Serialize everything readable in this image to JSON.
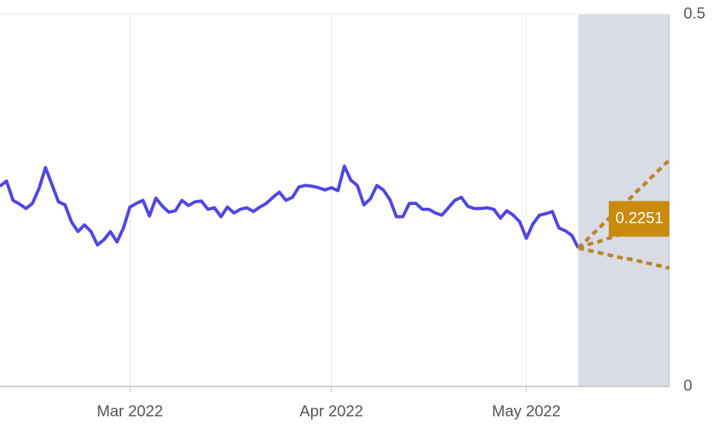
{
  "chart_data": {
    "type": "line",
    "categories": [
      null,
      null,
      null,
      null,
      null,
      null,
      null,
      null,
      null,
      null,
      null,
      null,
      null,
      null,
      null,
      null,
      null,
      null,
      null,
      null,
      "Mar 2022",
      null,
      null,
      null,
      null,
      null,
      null,
      null,
      null,
      null,
      null,
      null,
      null,
      null,
      null,
      null,
      null,
      null,
      null,
      null,
      null,
      null,
      null,
      null,
      null,
      null,
      null,
      null,
      null,
      null,
      null,
      "Apr 2022",
      null,
      null,
      null,
      null,
      null,
      null,
      null,
      null,
      null,
      null,
      null,
      null,
      null,
      null,
      null,
      null,
      null,
      null,
      null,
      null,
      null,
      null,
      null,
      null,
      null,
      null,
      null,
      null,
      null,
      "May 2022",
      null,
      null,
      null,
      null,
      null,
      null,
      null,
      null,
      null,
      null,
      null,
      null,
      null,
      null,
      null,
      null,
      null,
      null,
      null,
      null,
      null,
      null
    ],
    "series": [
      {
        "color": "#5046e4",
        "style": "solid",
        "values": [
          0.269,
          0.276,
          0.25,
          0.245,
          0.239,
          0.246,
          0.266,
          0.294,
          0.271,
          0.248,
          0.244,
          0.221,
          0.208,
          0.217,
          0.208,
          0.19,
          0.197,
          0.208,
          0.194,
          0.213,
          0.241,
          0.246,
          0.25,
          0.229,
          0.253,
          0.242,
          0.234,
          0.236,
          0.25,
          0.243,
          0.248,
          0.249,
          0.238,
          0.24,
          0.228,
          0.241,
          0.233,
          0.238,
          0.24,
          0.235,
          0.241,
          0.246,
          0.254,
          0.261,
          0.25,
          0.254,
          0.268,
          0.27,
          0.269,
          0.267,
          0.264,
          0.267,
          0.263,
          0.296,
          0.277,
          0.27,
          0.244,
          0.252,
          0.27,
          0.264,
          0.251,
          0.228,
          0.228,
          0.246,
          0.246,
          0.238,
          0.238,
          0.233,
          0.23,
          0.24,
          0.25,
          0.254,
          0.242,
          0.239,
          0.239,
          0.24,
          0.238,
          0.226,
          0.236,
          0.23,
          0.221,
          0.199,
          0.218,
          0.23,
          0.232,
          0.235,
          0.213,
          0.209,
          0.203,
          0.186,
          null,
          null,
          null,
          null,
          null,
          null,
          null,
          null,
          null,
          null,
          null,
          null,
          null,
          null
        ]
      },
      {
        "color": "#b8862b",
        "style": "dotted",
        "values": [
          null,
          null,
          null,
          null,
          null,
          null,
          null,
          null,
          null,
          null,
          null,
          null,
          null,
          null,
          null,
          null,
          null,
          null,
          null,
          null,
          null,
          null,
          null,
          null,
          null,
          null,
          null,
          null,
          null,
          null,
          null,
          null,
          null,
          null,
          null,
          null,
          null,
          null,
          null,
          null,
          null,
          null,
          null,
          null,
          null,
          null,
          null,
          null,
          null,
          null,
          null,
          null,
          null,
          null,
          null,
          null,
          null,
          null,
          null,
          null,
          null,
          null,
          null,
          null,
          null,
          null,
          null,
          null,
          null,
          null,
          null,
          null,
          null,
          null,
          null,
          null,
          null,
          null,
          null,
          null,
          null,
          null,
          null,
          null,
          null,
          null,
          null,
          null,
          null,
          0.186,
          0.194,
          0.203,
          0.211,
          0.22,
          0.228,
          0.237,
          0.245,
          0.253,
          0.262,
          0.27,
          0.279,
          0.287,
          0.296,
          0.304
        ]
      },
      {
        "color": "#b8862b",
        "style": "dotted",
        "values": [
          null,
          null,
          null,
          null,
          null,
          null,
          null,
          null,
          null,
          null,
          null,
          null,
          null,
          null,
          null,
          null,
          null,
          null,
          null,
          null,
          null,
          null,
          null,
          null,
          null,
          null,
          null,
          null,
          null,
          null,
          null,
          null,
          null,
          null,
          null,
          null,
          null,
          null,
          null,
          null,
          null,
          null,
          null,
          null,
          null,
          null,
          null,
          null,
          null,
          null,
          null,
          null,
          null,
          null,
          null,
          null,
          null,
          null,
          null,
          null,
          null,
          null,
          null,
          null,
          null,
          null,
          null,
          null,
          null,
          null,
          null,
          null,
          null,
          null,
          null,
          null,
          null,
          null,
          null,
          null,
          null,
          null,
          null,
          null,
          null,
          null,
          null,
          null,
          null,
          0.186,
          0.189,
          0.192,
          0.194,
          0.197,
          0.2,
          0.203,
          0.206,
          0.208,
          0.211,
          0.214,
          0.217,
          0.22,
          0.222,
          0.2251
        ]
      },
      {
        "color": "#b8862b",
        "style": "dotted",
        "values": [
          null,
          null,
          null,
          null,
          null,
          null,
          null,
          null,
          null,
          null,
          null,
          null,
          null,
          null,
          null,
          null,
          null,
          null,
          null,
          null,
          null,
          null,
          null,
          null,
          null,
          null,
          null,
          null,
          null,
          null,
          null,
          null,
          null,
          null,
          null,
          null,
          null,
          null,
          null,
          null,
          null,
          null,
          null,
          null,
          null,
          null,
          null,
          null,
          null,
          null,
          null,
          null,
          null,
          null,
          null,
          null,
          null,
          null,
          null,
          null,
          null,
          null,
          null,
          null,
          null,
          null,
          null,
          null,
          null,
          null,
          null,
          null,
          null,
          null,
          null,
          null,
          null,
          null,
          null,
          null,
          null,
          null,
          null,
          null,
          null,
          null,
          null,
          null,
          null,
          0.186,
          0.184,
          0.182,
          0.18,
          0.178,
          0.176,
          0.174,
          0.172,
          0.171,
          0.169,
          0.167,
          0.165,
          0.163,
          0.161,
          0.159
        ]
      }
    ],
    "forecast_shade": "#d9dce4",
    "label_color": "#c98b0c",
    "ylim": [
      0,
      0.5
    ],
    "yticks": [
      0,
      0.5
    ],
    "grid": true
  }
}
